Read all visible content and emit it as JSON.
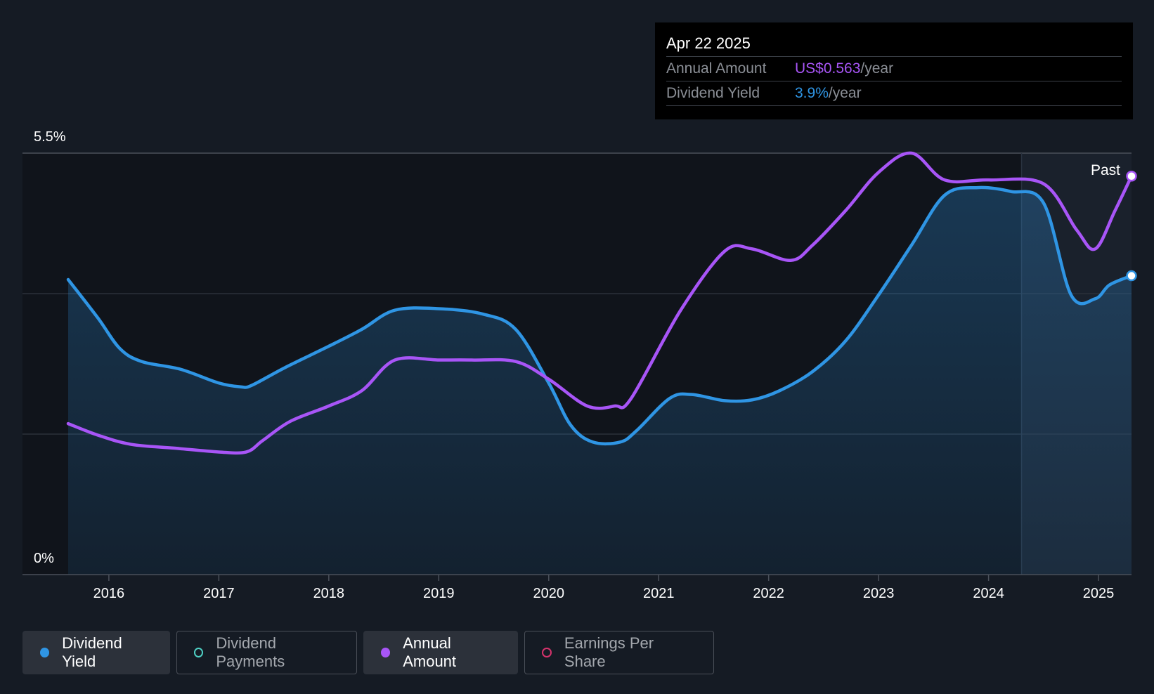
{
  "tooltip": {
    "date": "Apr 22 2025",
    "rows": [
      {
        "label": "Annual Amount",
        "value": "US$0.563",
        "unit": "/year",
        "color": "#a855f7"
      },
      {
        "label": "Dividend Yield",
        "value": "3.9%",
        "unit": "/year",
        "color": "#2f95e4"
      }
    ]
  },
  "legend": [
    {
      "label": "Dividend Yield",
      "color": "#2f95e4",
      "filled": true,
      "active": true
    },
    {
      "label": "Dividend Payments",
      "color": "#4fd1c5",
      "filled": false,
      "active": false
    },
    {
      "label": "Annual Amount",
      "color": "#a855f7",
      "filled": true,
      "active": true
    },
    {
      "label": "Earnings Per Share",
      "color": "#d6336c",
      "filled": false,
      "active": false
    }
  ],
  "chart_data": {
    "type": "line",
    "y_top_label": "5.5%",
    "y_bottom_label": "0%",
    "ylim": [
      0,
      5.5
    ],
    "xlim": [
      2015.63,
      2025.3
    ],
    "x_ticks": [
      2016,
      2017,
      2018,
      2019,
      2020,
      2021,
      2022,
      2023,
      2024,
      2025
    ],
    "x_tick_labels": [
      "2016",
      "2017",
      "2018",
      "2019",
      "2020",
      "2021",
      "2022",
      "2023",
      "2024",
      "2025"
    ],
    "past_label": "Past",
    "past_start": 2024.3,
    "series": [
      {
        "name": "Dividend Yield",
        "color": "#2f95e4",
        "area": true,
        "end_marker": true,
        "points": [
          [
            2015.63,
            3.85
          ],
          [
            2015.9,
            3.35
          ],
          [
            2016.1,
            2.95
          ],
          [
            2016.3,
            2.78
          ],
          [
            2016.65,
            2.68
          ],
          [
            2017,
            2.5
          ],
          [
            2017.2,
            2.45
          ],
          [
            2017.3,
            2.47
          ],
          [
            2017.6,
            2.7
          ],
          [
            2018,
            2.98
          ],
          [
            2018.3,
            3.2
          ],
          [
            2018.6,
            3.45
          ],
          [
            2019,
            3.47
          ],
          [
            2019.4,
            3.4
          ],
          [
            2019.7,
            3.2
          ],
          [
            2020,
            2.5
          ],
          [
            2020.2,
            1.95
          ],
          [
            2020.4,
            1.73
          ],
          [
            2020.65,
            1.73
          ],
          [
            2020.8,
            1.88
          ],
          [
            2021.1,
            2.3
          ],
          [
            2021.3,
            2.35
          ],
          [
            2021.6,
            2.27
          ],
          [
            2021.85,
            2.28
          ],
          [
            2022.1,
            2.4
          ],
          [
            2022.4,
            2.65
          ],
          [
            2022.7,
            3.05
          ],
          [
            2023,
            3.65
          ],
          [
            2023.3,
            4.3
          ],
          [
            2023.6,
            4.95
          ],
          [
            2023.9,
            5.05
          ],
          [
            2024.2,
            5.0
          ],
          [
            2024.5,
            4.85
          ],
          [
            2024.75,
            3.65
          ],
          [
            2024.97,
            3.6
          ],
          [
            2025.1,
            3.78
          ],
          [
            2025.3,
            3.9
          ]
        ]
      },
      {
        "name": "Annual Amount",
        "color": "#a855f7",
        "area": false,
        "end_marker": true,
        "points": [
          [
            2015.63,
            1.97
          ],
          [
            2015.9,
            1.82
          ],
          [
            2016.2,
            1.7
          ],
          [
            2016.6,
            1.65
          ],
          [
            2017,
            1.6
          ],
          [
            2017.25,
            1.6
          ],
          [
            2017.4,
            1.75
          ],
          [
            2017.65,
            2.0
          ],
          [
            2018,
            2.2
          ],
          [
            2018.3,
            2.4
          ],
          [
            2018.6,
            2.8
          ],
          [
            2019,
            2.8
          ],
          [
            2019.3,
            2.8
          ],
          [
            2019.7,
            2.78
          ],
          [
            2020,
            2.55
          ],
          [
            2020.35,
            2.2
          ],
          [
            2020.6,
            2.2
          ],
          [
            2020.75,
            2.3
          ],
          [
            2021.2,
            3.45
          ],
          [
            2021.6,
            4.22
          ],
          [
            2021.85,
            4.25
          ],
          [
            2022.2,
            4.1
          ],
          [
            2022.4,
            4.3
          ],
          [
            2022.7,
            4.75
          ],
          [
            2023,
            5.25
          ],
          [
            2023.3,
            5.5
          ],
          [
            2023.6,
            5.15
          ],
          [
            2024.0,
            5.15
          ],
          [
            2024.5,
            5.1
          ],
          [
            2024.8,
            4.5
          ],
          [
            2024.97,
            4.25
          ],
          [
            2025.15,
            4.75
          ],
          [
            2025.3,
            5.2
          ]
        ]
      }
    ]
  }
}
